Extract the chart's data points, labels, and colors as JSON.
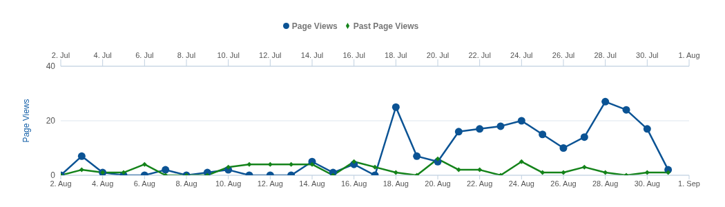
{
  "chart_data": {
    "type": "line",
    "ylabel": "Page Views",
    "legend": "top",
    "grid": "y",
    "xlim": [
      "--08-02",
      "--09-01"
    ],
    "xticks": [
      {
        "value": "--08-02",
        "label": "2. Aug"
      },
      {
        "value": "--08-04",
        "label": "4. Aug"
      },
      {
        "value": "--08-06",
        "label": "6. Aug"
      },
      {
        "value": "--08-08",
        "label": "8. Aug"
      },
      {
        "value": "--08-10",
        "label": "10. Aug"
      },
      {
        "value": "--08-12",
        "label": "12. Aug"
      },
      {
        "value": "--08-14",
        "label": "14. Aug"
      },
      {
        "value": "--08-16",
        "label": "16. Aug"
      },
      {
        "value": "--08-18",
        "label": "18. Aug"
      },
      {
        "value": "--08-20",
        "label": "20. Aug"
      },
      {
        "value": "--08-22",
        "label": "22. Aug"
      },
      {
        "value": "--08-24",
        "label": "24. Aug"
      },
      {
        "value": "--08-26",
        "label": "26. Aug"
      },
      {
        "value": "--08-28",
        "label": "28. Aug"
      },
      {
        "value": "--08-30",
        "label": "30. Aug"
      },
      {
        "value": "--09-01",
        "label": "1. Sep"
      }
    ],
    "x2lim": [
      "--07-02",
      "--08-01"
    ],
    "x2ticks": [
      {
        "value": "--07-02",
        "label": "2. Jul"
      },
      {
        "value": "--07-04",
        "label": "4. Jul"
      },
      {
        "value": "--07-06",
        "label": "6. Jul"
      },
      {
        "value": "--07-08",
        "label": "8. Jul"
      },
      {
        "value": "--07-10",
        "label": "10. Jul"
      },
      {
        "value": "--07-12",
        "label": "12. Jul"
      },
      {
        "value": "--07-14",
        "label": "14. Jul"
      },
      {
        "value": "--07-16",
        "label": "16. Jul"
      },
      {
        "value": "--07-18",
        "label": "18. Jul"
      },
      {
        "value": "--07-20",
        "label": "20. Jul"
      },
      {
        "value": "--07-22",
        "label": "22. Jul"
      },
      {
        "value": "--07-24",
        "label": "24. Jul"
      },
      {
        "value": "--07-26",
        "label": "26. Jul"
      },
      {
        "value": "--07-28",
        "label": "28. Jul"
      },
      {
        "value": "--07-30",
        "label": "30. Jul"
      },
      {
        "value": "--08-01",
        "label": "1. Aug"
      }
    ],
    "ylim": [
      0,
      40
    ],
    "yticks": [
      0,
      20,
      40
    ],
    "series": [
      {
        "name": "Page Views",
        "color": "#0b5394",
        "marker": "circle",
        "x": [
          "--08-02",
          "--08-03",
          "--08-04",
          "--08-05",
          "--08-06",
          "--08-07",
          "--08-08",
          "--08-09",
          "--08-10",
          "--08-11",
          "--08-12",
          "--08-13",
          "--08-14",
          "--08-15",
          "--08-16",
          "--08-17",
          "--08-18",
          "--08-19",
          "--08-20",
          "--08-21",
          "--08-22",
          "--08-23",
          "--08-24",
          "--08-25",
          "--08-26",
          "--08-27",
          "--08-28",
          "--08-29",
          "--08-30",
          "--08-31"
        ],
        "values": [
          0,
          7,
          1,
          0,
          0,
          2,
          0,
          1,
          2,
          0,
          0,
          0,
          5,
          1,
          4,
          0,
          25,
          7,
          5,
          16,
          17,
          18,
          20,
          15,
          10,
          14,
          27,
          24,
          17,
          2
        ]
      },
      {
        "name": "Past Page Views",
        "color": "#14831a",
        "marker": "diamond",
        "axis": "x2",
        "x": [
          "--07-02",
          "--07-03",
          "--07-04",
          "--07-05",
          "--07-06",
          "--07-07",
          "--07-08",
          "--07-09",
          "--07-10",
          "--07-11",
          "--07-12",
          "--07-13",
          "--07-14",
          "--07-15",
          "--07-16",
          "--07-17",
          "--07-18",
          "--07-19",
          "--07-20",
          "--07-21",
          "--07-22",
          "--07-23",
          "--07-24",
          "--07-25",
          "--07-26",
          "--07-27",
          "--07-28",
          "--07-29",
          "--07-30",
          "--07-31"
        ],
        "values": [
          0,
          2,
          1,
          1,
          4,
          0,
          0,
          0,
          3,
          4,
          4,
          4,
          4,
          0,
          5,
          3,
          1,
          0,
          6,
          2,
          2,
          0,
          5,
          1,
          1,
          3,
          1,
          0,
          1,
          1
        ]
      }
    ]
  }
}
